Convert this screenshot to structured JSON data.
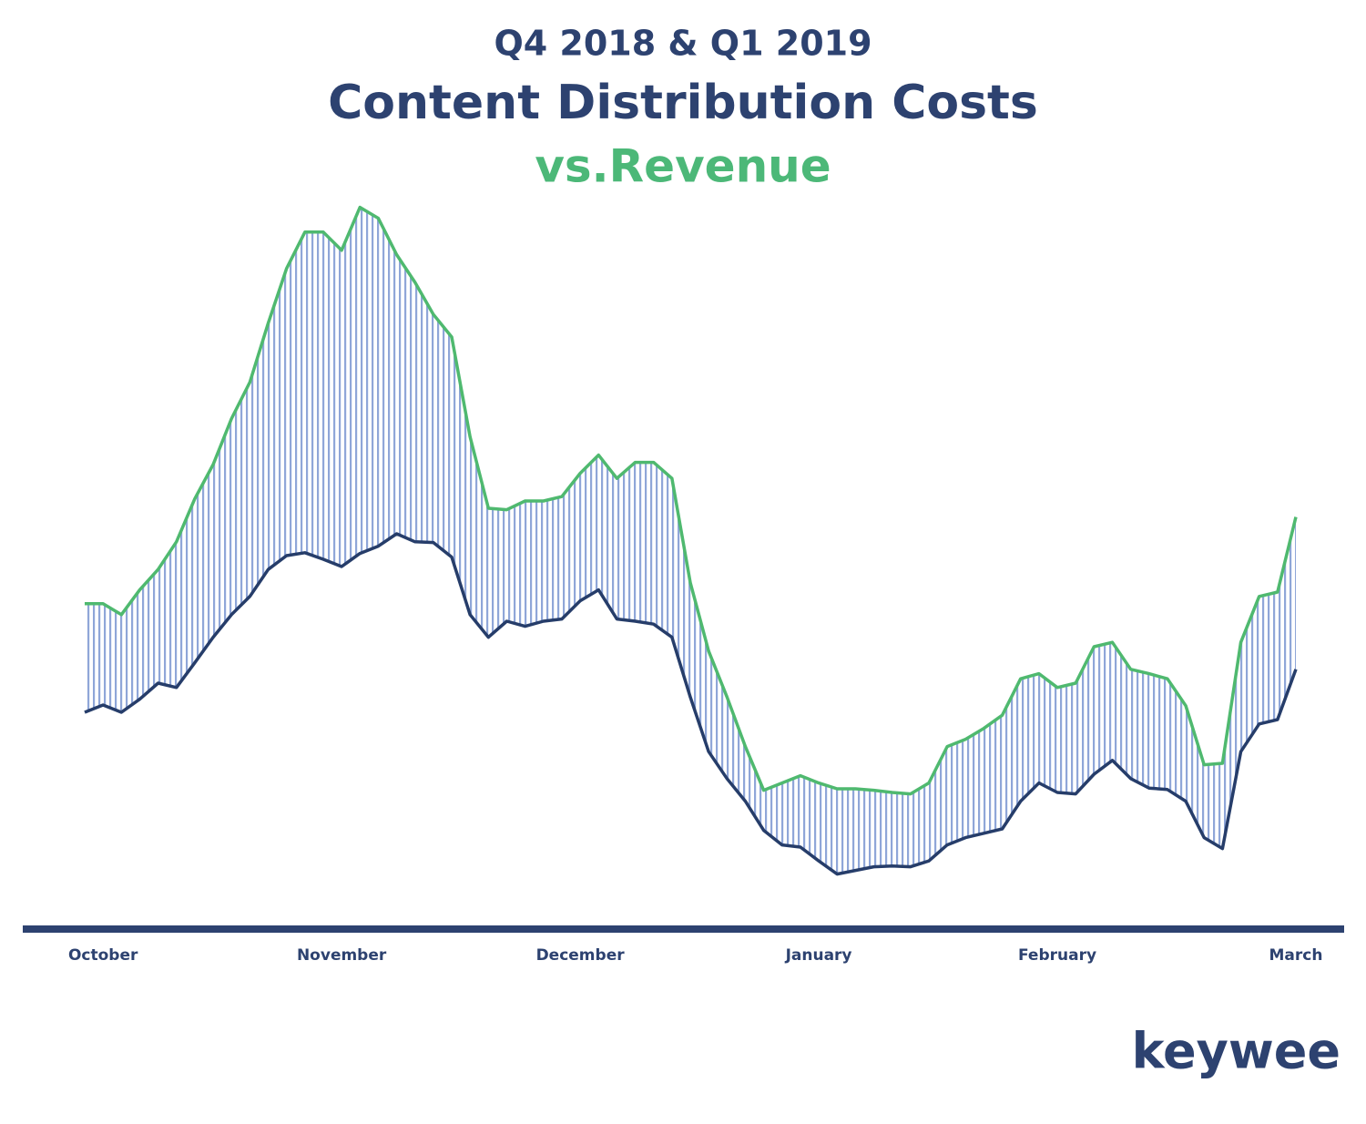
{
  "chart_data": {
    "type": "line",
    "title": "Content Distribution Costs",
    "subtitle": "Q4 2018 & Q1 2019",
    "title_suffix": "vs.Revenue",
    "logo": "keywee",
    "categories": [
      null,
      "October",
      null,
      null,
      null,
      null,
      null,
      null,
      null,
      null,
      null,
      null,
      null,
      null,
      "November",
      null,
      null,
      null,
      null,
      null,
      null,
      null,
      null,
      null,
      null,
      null,
      null,
      "December",
      null,
      null,
      null,
      null,
      null,
      null,
      null,
      null,
      null,
      null,
      null,
      null,
      "January",
      null,
      null,
      null,
      null,
      null,
      null,
      null,
      null,
      null,
      null,
      null,
      null,
      "February",
      null,
      null,
      null,
      null,
      null,
      null,
      null,
      null,
      null,
      null,
      null,
      null,
      "March"
    ],
    "series": [
      {
        "color": "#4fb96f",
        "values": [
          43.4,
          43.4,
          41.9,
          45.3,
          48.1,
          51.9,
          57.8,
          62.5,
          68.8,
          73.8,
          81.9,
          89.4,
          94.4,
          94.4,
          91.9,
          97.8,
          96.3,
          91.3,
          87.5,
          83.1,
          80,
          66.3,
          56.5,
          56.3,
          57.5,
          57.5,
          58.1,
          61.3,
          63.8,
          60.6,
          62.8,
          62.8,
          60.6,
          46.3,
          36.9,
          30.6,
          23.8,
          17.8,
          18.8,
          19.8,
          18.8,
          18,
          18,
          17.8,
          17.5,
          17.3,
          18.8,
          23.8,
          24.8,
          26.3,
          28.1,
          33.1,
          33.8,
          31.9,
          32.5,
          37.5,
          38.1,
          34.4,
          33.8,
          33.1,
          29.4,
          21.3,
          21.5,
          38.1,
          44.4,
          45,
          55.3
        ]
      },
      {
        "color": "#263d6a",
        "values": [
          28.5,
          29.5,
          28.5,
          30.3,
          32.5,
          31.9,
          35.3,
          38.8,
          41.9,
          44.4,
          48.1,
          50,
          50.4,
          49.5,
          48.5,
          50.3,
          51.3,
          53,
          51.9,
          51.8,
          49.8,
          41.9,
          38.8,
          41,
          40.3,
          41,
          41.3,
          43.8,
          45.3,
          41.3,
          41,
          40.6,
          38.8,
          30.6,
          23.1,
          19.4,
          16.3,
          12.3,
          10.3,
          10,
          8.1,
          6.3,
          6.8,
          7.3,
          7.4,
          7.3,
          8.1,
          10.3,
          11.3,
          11.9,
          12.5,
          16.3,
          18.8,
          17.5,
          17.3,
          20,
          21.9,
          19.4,
          18.1,
          17.9,
          16.3,
          11.3,
          9.8,
          23.1,
          26.9,
          27.5,
          34.4
        ]
      }
    ],
    "ylim": [
      0,
      100
    ],
    "fill_color": "#8fa6d8"
  }
}
